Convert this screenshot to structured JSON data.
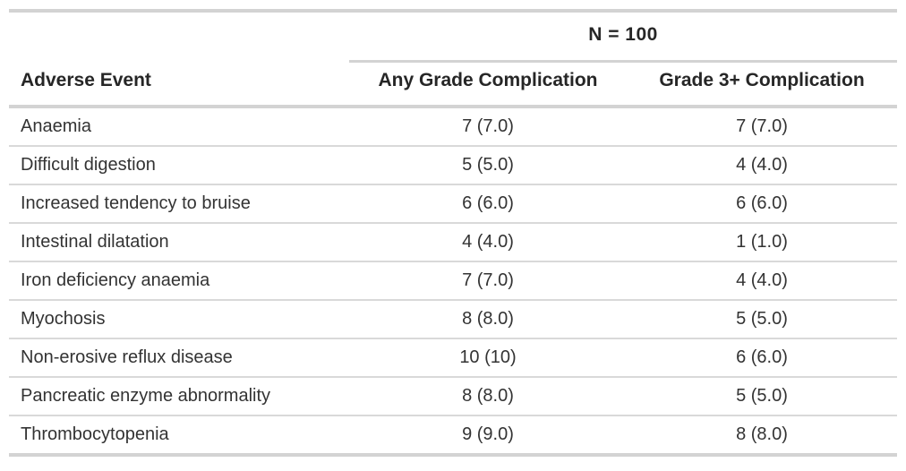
{
  "chart_data": {
    "type": "table",
    "title": "",
    "spanner_label": "N = 100",
    "columns": [
      "Adverse Event",
      "Any Grade Complication",
      "Grade 3+ Complication"
    ],
    "rows": [
      [
        "Anaemia",
        "7 (7.0)",
        "7 (7.0)"
      ],
      [
        "Difficult digestion",
        "5 (5.0)",
        "4 (4.0)"
      ],
      [
        "Increased tendency to bruise",
        "6 (6.0)",
        "6 (6.0)"
      ],
      [
        "Intestinal dilatation",
        "4 (4.0)",
        "1 (1.0)"
      ],
      [
        "Iron deficiency anaemia",
        "7 (7.0)",
        "4 (4.0)"
      ],
      [
        "Myochosis",
        "8 (8.0)",
        "5 (5.0)"
      ],
      [
        "Non-erosive reflux disease",
        "10 (10)",
        "6 (6.0)"
      ],
      [
        "Pancreatic enzyme abnormality",
        "8 (8.0)",
        "5 (5.0)"
      ],
      [
        "Thrombocytopenia",
        "9 (9.0)",
        "8 (8.0)"
      ]
    ],
    "layout": {
      "spanner_spans_columns": [
        1,
        2
      ],
      "stub_alignment": "left",
      "value_alignment": "center"
    },
    "colors": {
      "text": "#333333",
      "header_text": "#262626",
      "rule_thick": "#d3d3d3",
      "rule_thin": "#d9d9d9",
      "background": "#ffffff"
    }
  }
}
